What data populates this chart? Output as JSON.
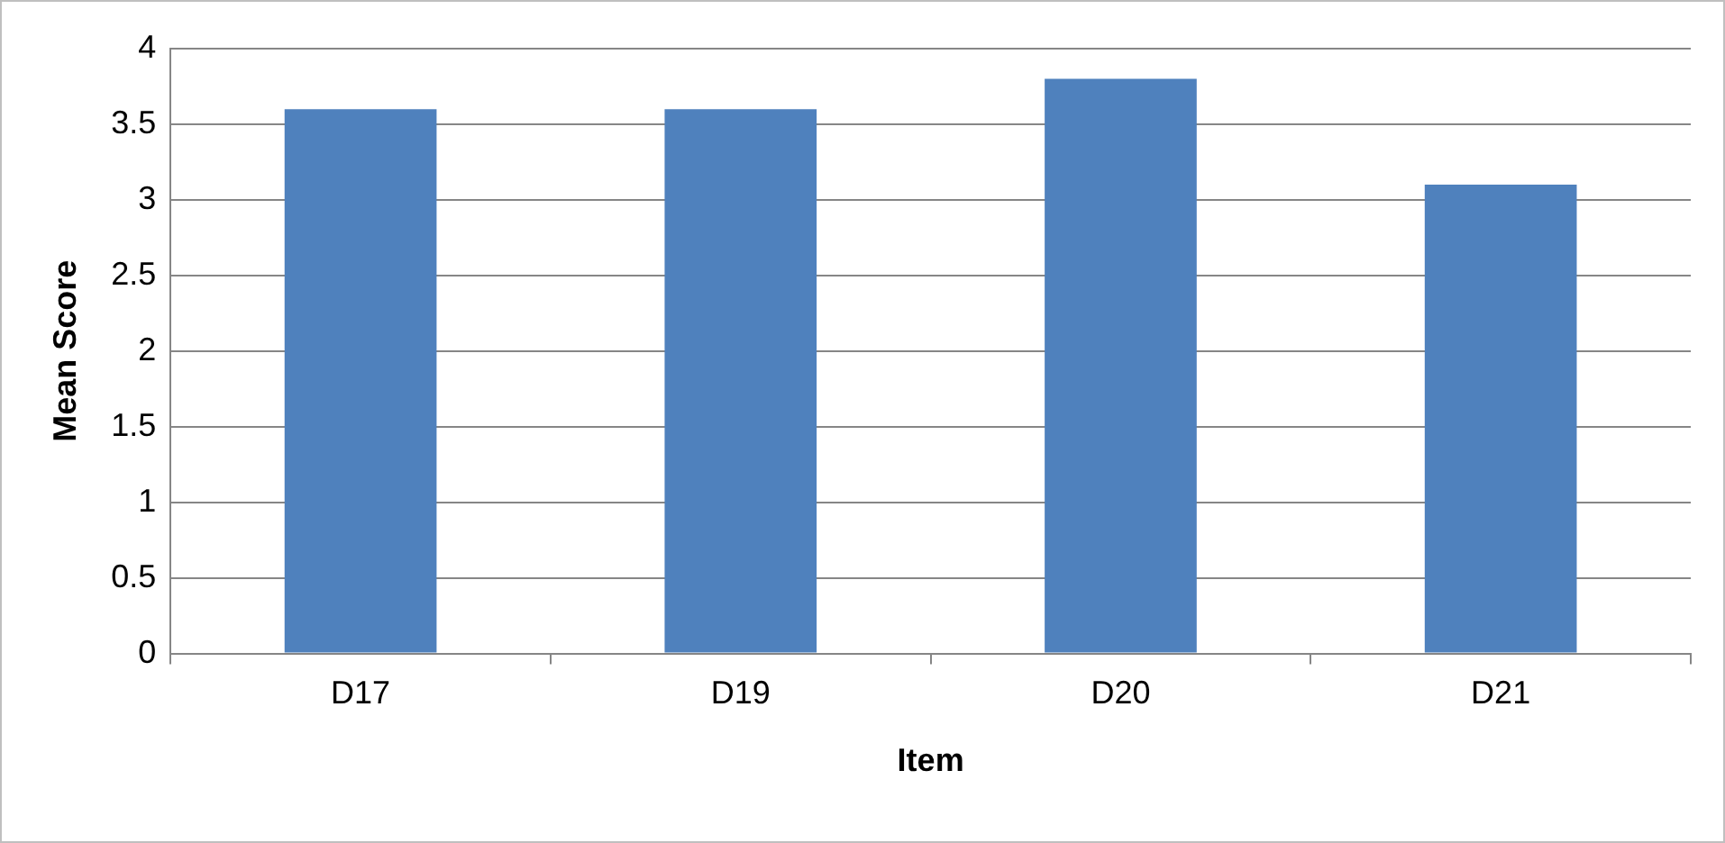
{
  "chart_data": {
    "type": "bar",
    "xlabel": "Item",
    "ylabel": "Mean Score",
    "categories": [
      "D17",
      "D19",
      "D20",
      "D21"
    ],
    "values": [
      3.6,
      3.6,
      3.8,
      3.1
    ],
    "color": "#4f81bd",
    "ylim": [
      0,
      4
    ],
    "yticks": [
      0,
      0.5,
      1,
      1.5,
      2,
      2.5,
      3,
      3.5,
      4
    ],
    "grid": "y",
    "legend": false
  }
}
